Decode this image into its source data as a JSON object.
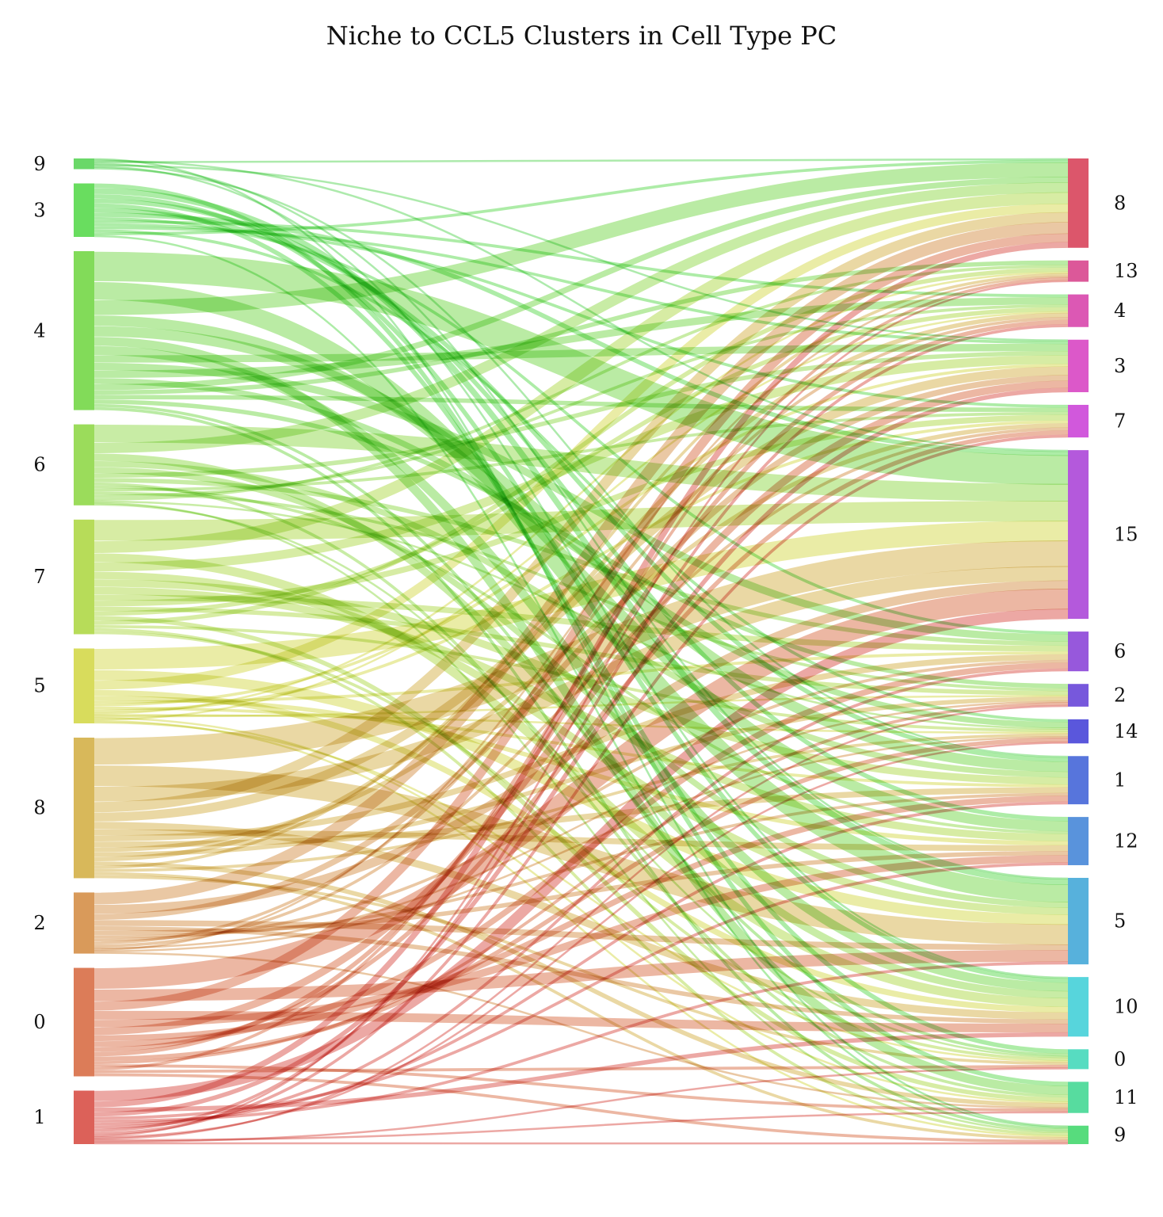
{
  "title": "Niche to CCL5 Clusters in Cell Type PC",
  "left_nodes": [
    {
      "label": "9",
      "color": "#6ad868"
    },
    {
      "label": "3",
      "color": "#69dd5f"
    },
    {
      "label": "4",
      "color": "#82db59"
    },
    {
      "label": "6",
      "color": "#9bdc5b"
    },
    {
      "label": "7",
      "color": "#b7dc59"
    },
    {
      "label": "5",
      "color": "#d8dc5c"
    },
    {
      "label": "8",
      "color": "#d8b85a"
    },
    {
      "label": "2",
      "color": "#d99a5a"
    },
    {
      "label": "0",
      "color": "#dc7c58"
    },
    {
      "label": "1",
      "color": "#dc6159"
    }
  ],
  "right_nodes": [
    {
      "label": "8",
      "color": "#dc566b"
    },
    {
      "label": "13",
      "color": "#dc5899"
    },
    {
      "label": "4",
      "color": "#dc58b4"
    },
    {
      "label": "3",
      "color": "#dc58c9"
    },
    {
      "label": "7",
      "color": "#d158dc"
    },
    {
      "label": "15",
      "color": "#b459dc"
    },
    {
      "label": "6",
      "color": "#9758dc"
    },
    {
      "label": "2",
      "color": "#7758dc"
    },
    {
      "label": "14",
      "color": "#5a57dc"
    },
    {
      "label": "1",
      "color": "#5775dc"
    },
    {
      "label": "12",
      "color": "#5993dc"
    },
    {
      "label": "5",
      "color": "#57b1dc"
    },
    {
      "label": "10",
      "color": "#57d5dc"
    },
    {
      "label": "0",
      "color": "#57dcc1"
    },
    {
      "label": "11",
      "color": "#57dc9f"
    },
    {
      "label": "9",
      "color": "#57dc7d"
    }
  ],
  "flows": [
    [
      0,
      15,
      1
    ],
    [
      0,
      5,
      1
    ],
    [
      0,
      0,
      1
    ],
    [
      0,
      11,
      1
    ],
    [
      0,
      3,
      1
    ],
    [
      0,
      12,
      1
    ],
    [
      0,
      9,
      1
    ],
    [
      1,
      14,
      3
    ],
    [
      1,
      11,
      4
    ],
    [
      1,
      12,
      3
    ],
    [
      1,
      10,
      3
    ],
    [
      1,
      13,
      3
    ],
    [
      1,
      9,
      3
    ],
    [
      1,
      5,
      3
    ],
    [
      1,
      6,
      2
    ],
    [
      1,
      2,
      2
    ],
    [
      1,
      4,
      2
    ],
    [
      1,
      3,
      2
    ],
    [
      1,
      8,
      2
    ],
    [
      1,
      0,
      2
    ],
    [
      1,
      15,
      1
    ],
    [
      2,
      5,
      20
    ],
    [
      2,
      11,
      12
    ],
    [
      2,
      0,
      10
    ],
    [
      2,
      10,
      7
    ],
    [
      2,
      9,
      7
    ],
    [
      2,
      14,
      6
    ],
    [
      2,
      12,
      6
    ],
    [
      2,
      3,
      5
    ],
    [
      2,
      6,
      5
    ],
    [
      2,
      2,
      5
    ],
    [
      2,
      8,
      4
    ],
    [
      2,
      0,
      4
    ],
    [
      2,
      1,
      3
    ],
    [
      2,
      4,
      3
    ],
    [
      2,
      7,
      3
    ],
    [
      2,
      13,
      2
    ],
    [
      2,
      15,
      2
    ],
    [
      3,
      5,
      12
    ],
    [
      3,
      0,
      7
    ],
    [
      3,
      12,
      5
    ],
    [
      3,
      9,
      4
    ],
    [
      3,
      11,
      4
    ],
    [
      3,
      3,
      3
    ],
    [
      3,
      6,
      3
    ],
    [
      3,
      14,
      2
    ],
    [
      3,
      10,
      2
    ],
    [
      3,
      4,
      2
    ],
    [
      3,
      7,
      2
    ],
    [
      3,
      2,
      2
    ],
    [
      3,
      1,
      2
    ],
    [
      3,
      8,
      1
    ],
    [
      3,
      15,
      1
    ],
    [
      3,
      13,
      1
    ],
    [
      4,
      5,
      14
    ],
    [
      4,
      0,
      8
    ],
    [
      4,
      12,
      6
    ],
    [
      4,
      3,
      6
    ],
    [
      4,
      11,
      5
    ],
    [
      4,
      9,
      5
    ],
    [
      4,
      10,
      5
    ],
    [
      4,
      6,
      4
    ],
    [
      4,
      4,
      4
    ],
    [
      4,
      7,
      3
    ],
    [
      4,
      2,
      3
    ],
    [
      4,
      14,
      3
    ],
    [
      4,
      1,
      3
    ],
    [
      4,
      8,
      2
    ],
    [
      4,
      15,
      2
    ],
    [
      4,
      13,
      2
    ],
    [
      5,
      5,
      14
    ],
    [
      5,
      11,
      7
    ],
    [
      5,
      0,
      6
    ],
    [
      5,
      12,
      4
    ],
    [
      5,
      10,
      3
    ],
    [
      5,
      6,
      2
    ],
    [
      5,
      3,
      2
    ],
    [
      5,
      9,
      2
    ],
    [
      5,
      4,
      2
    ],
    [
      5,
      1,
      1
    ],
    [
      5,
      8,
      1
    ],
    [
      5,
      7,
      1
    ],
    [
      5,
      14,
      1
    ],
    [
      5,
      2,
      1
    ],
    [
      5,
      15,
      1
    ],
    [
      5,
      13,
      1
    ],
    [
      6,
      5,
      18
    ],
    [
      6,
      11,
      14
    ],
    [
      6,
      5,
      10
    ],
    [
      6,
      0,
      7
    ],
    [
      6,
      3,
      6
    ],
    [
      6,
      12,
      5
    ],
    [
      6,
      10,
      4
    ],
    [
      6,
      6,
      4
    ],
    [
      6,
      9,
      4
    ],
    [
      6,
      4,
      3
    ],
    [
      6,
      7,
      3
    ],
    [
      6,
      2,
      3
    ],
    [
      6,
      14,
      3
    ],
    [
      6,
      1,
      2
    ],
    [
      6,
      8,
      2
    ],
    [
      6,
      15,
      2
    ],
    [
      6,
      13,
      2
    ],
    [
      7,
      0,
      8
    ],
    [
      7,
      5,
      6
    ],
    [
      7,
      3,
      4
    ],
    [
      7,
      11,
      4
    ],
    [
      7,
      12,
      3
    ],
    [
      7,
      10,
      3
    ],
    [
      7,
      9,
      2
    ],
    [
      7,
      6,
      2
    ],
    [
      7,
      2,
      2
    ],
    [
      7,
      4,
      2
    ],
    [
      7,
      7,
      1
    ],
    [
      7,
      1,
      1
    ],
    [
      7,
      8,
      1
    ],
    [
      7,
      14,
      1
    ],
    [
      8,
      5,
      14
    ],
    [
      8,
      11,
      8
    ],
    [
      8,
      0,
      6
    ],
    [
      8,
      12,
      6
    ],
    [
      8,
      10,
      5
    ],
    [
      8,
      3,
      5
    ],
    [
      8,
      9,
      4
    ],
    [
      8,
      6,
      4
    ],
    [
      8,
      4,
      3
    ],
    [
      8,
      2,
      3
    ],
    [
      8,
      8,
      3
    ],
    [
      8,
      7,
      2
    ],
    [
      8,
      14,
      2
    ],
    [
      8,
      1,
      2
    ],
    [
      8,
      13,
      2
    ],
    [
      8,
      15,
      2
    ],
    [
      9,
      5,
      7
    ],
    [
      9,
      0,
      4
    ],
    [
      9,
      12,
      3
    ],
    [
      9,
      3,
      3
    ],
    [
      9,
      10,
      2
    ],
    [
      9,
      11,
      2
    ],
    [
      9,
      9,
      2
    ],
    [
      9,
      6,
      2
    ],
    [
      9,
      2,
      2
    ],
    [
      9,
      4,
      2
    ],
    [
      9,
      1,
      1
    ],
    [
      9,
      8,
      1
    ],
    [
      9,
      7,
      1
    ],
    [
      9,
      14,
      1
    ],
    [
      9,
      13,
      1
    ],
    [
      9,
      15,
      1
    ]
  ]
}
